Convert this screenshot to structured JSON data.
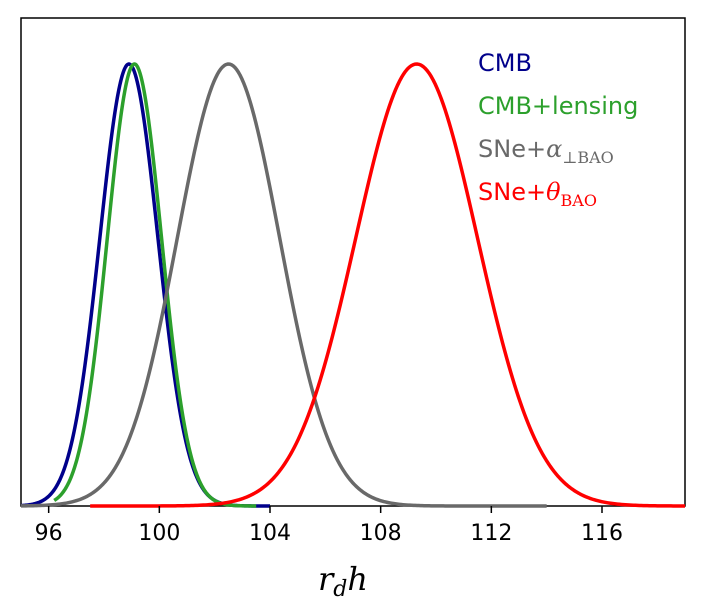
{
  "chart_data": {
    "type": "line",
    "title": "",
    "xlabel": "r_d h",
    "xlabel_parts": {
      "main": "r",
      "sub": "d",
      "tail": "h"
    },
    "ylabel": "",
    "xlim": [
      95,
      119
    ],
    "ylim": [
      0,
      1.05
    ],
    "xticks": [
      96,
      100,
      104,
      108,
      112,
      116
    ],
    "xtick_labels": [
      "96",
      "100",
      "104",
      "108",
      "112",
      "116"
    ],
    "grid": false,
    "legend_position": "top-right",
    "series": [
      {
        "name": "CMB",
        "legend": {
          "main": "CMB",
          "greek": "",
          "sub": ""
        },
        "color": "#00008b",
        "mean": 98.9,
        "sigma": 1.05,
        "x_range": [
          95,
          104
        ]
      },
      {
        "name": "CMB+lensing",
        "legend": {
          "main": "CMB+lensing",
          "greek": "",
          "sub": ""
        },
        "color": "#2ca02c",
        "mean": 99.1,
        "sigma": 0.98,
        "x_range": [
          96.2,
          103.5
        ]
      },
      {
        "name": "SNe+α⊥BAO",
        "legend": {
          "main": "SNe+",
          "greek": "α",
          "sub": "⊥BAO"
        },
        "color": "#696969",
        "mean": 102.5,
        "sigma": 1.85,
        "x_range": [
          95,
          114
        ]
      },
      {
        "name": "SNe+θBAO",
        "legend": {
          "main": "SNe+",
          "greek": "θ",
          "sub": "BAO"
        },
        "color": "#ff0000",
        "mean": 109.3,
        "sigma": 2.2,
        "x_range": [
          97.5,
          119
        ]
      }
    ]
  }
}
